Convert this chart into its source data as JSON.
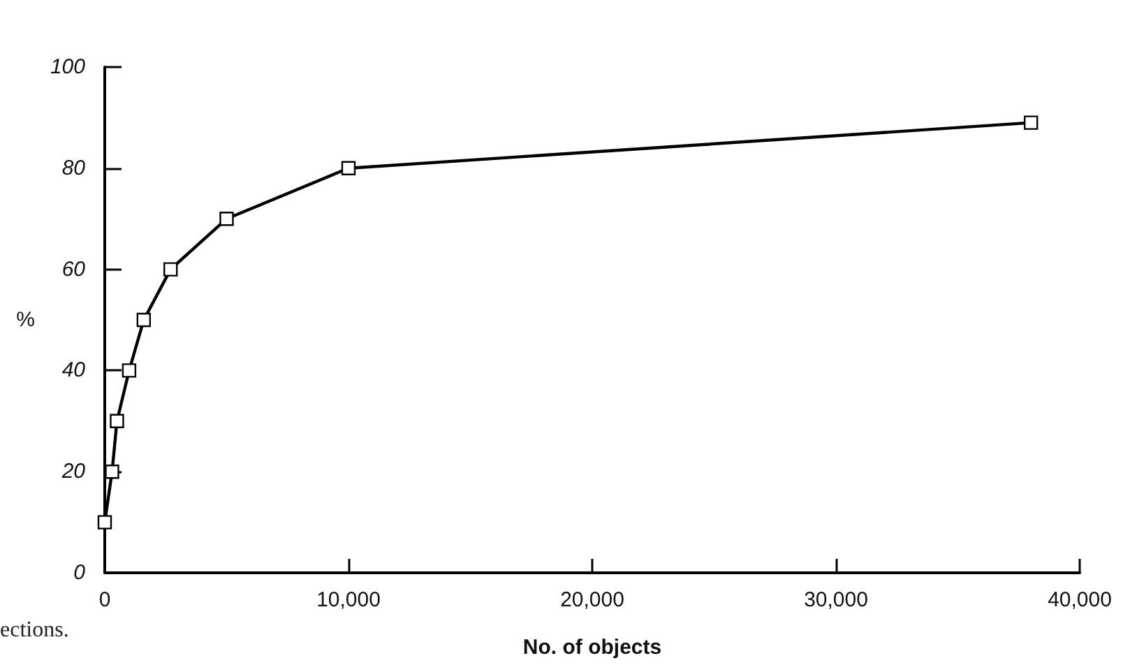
{
  "chart_data": {
    "type": "line",
    "xlabel": "No. of objects",
    "ylabel": "%",
    "x": [
      0,
      300,
      500,
      1000,
      1600,
      2700,
      5000,
      10000,
      38000
    ],
    "series": [
      {
        "color": "#000000",
        "values": [
          10,
          20,
          30,
          40,
          50,
          60,
          70,
          80,
          89
        ]
      }
    ],
    "xlim": [
      0,
      40000
    ],
    "xticks": [
      {
        "value": 0,
        "label": "0"
      },
      {
        "value": 10000,
        "label": "10,000"
      },
      {
        "value": 20000,
        "label": "20,000"
      },
      {
        "value": 30000,
        "label": "30,000"
      },
      {
        "value": 40000,
        "label": "40,000"
      }
    ],
    "ylim": [
      0,
      100
    ],
    "yticks": [
      0,
      20,
      40,
      60,
      80,
      100
    ],
    "grid": false,
    "marker": "square",
    "line_style": "solid",
    "annotations": [
      "ections."
    ]
  }
}
